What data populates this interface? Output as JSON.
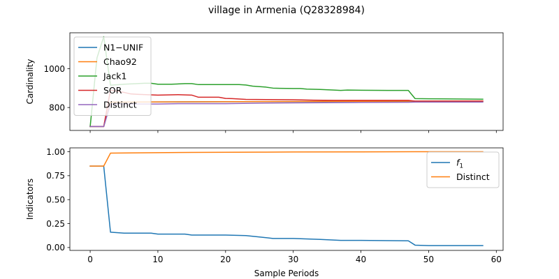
{
  "chart_data": {
    "title": "village in Armenia (Q28328984)",
    "xlabel": "Sample Periods",
    "x_ticks": [
      0,
      10,
      20,
      30,
      40,
      50,
      60
    ],
    "xlim": [
      -3,
      61
    ],
    "panels": [
      {
        "type": "line",
        "ylabel": "Cardinality",
        "ylim": [
          682,
          1185
        ],
        "y_ticks": [
          800,
          1000
        ],
        "legend_position": "upper-left",
        "series": [
          {
            "name": "N1−UNIF",
            "color": "#1f77b4",
            "x": [
              0,
              2,
              3,
              58
            ],
            "y": [
              702,
              702,
              828,
              833
            ]
          },
          {
            "name": "Chao92",
            "color": "#ff7f0e",
            "x": [
              0,
              2,
              3,
              58
            ],
            "y": [
              702,
              702,
              828,
              834
            ]
          },
          {
            "name": "Jack1",
            "color": "#2ca02c",
            "x": [
              0,
              1,
              2,
              3,
              5,
              8,
              9,
              10,
              12,
              14,
              15,
              16,
              18,
              20,
              22,
              23,
              24,
              26,
              27,
              28,
              30,
              31,
              32,
              34,
              36,
              37,
              38,
              40,
              44,
              47,
              48,
              50,
              58
            ],
            "y": [
              702,
              1055,
              1165,
              915,
              920,
              925,
              925,
              920,
              920,
              923,
              923,
              918,
              918,
              918,
              918,
              916,
              910,
              905,
              900,
              899,
              898,
              898,
              895,
              893,
              890,
              888,
              890,
              889,
              888,
              888,
              846,
              845,
              843
            ]
          },
          {
            "name": "SOR",
            "color": "#d62728",
            "x": [
              0,
              2,
              3,
              5,
              6,
              7,
              10,
              13,
              15,
              16,
              19,
              20,
              21,
              23,
              26,
              30,
              33,
              36,
              40,
              44,
              47,
              48,
              58
            ],
            "y": [
              702,
              702,
              890,
              878,
              870,
              868,
              864,
              866,
              864,
              853,
              853,
              847,
              846,
              842,
              841,
              840,
              838,
              837,
              837,
              837,
              837,
              833,
              833
            ]
          },
          {
            "name": "Distinct",
            "color": "#9467bd",
            "x": [
              0,
              2,
              3,
              10,
              13,
              20,
              26,
              30,
              40,
              47,
              48,
              58
            ],
            "y": [
              702,
              702,
              818,
              818,
              820,
              820,
              823,
              824,
              826,
              827,
              828,
              828
            ]
          }
        ]
      },
      {
        "type": "line",
        "ylabel": "Indicators",
        "ylim": [
          -0.03,
          1.04
        ],
        "y_ticks": [
          0.0,
          0.25,
          0.5,
          0.75,
          1.0
        ],
        "y_tick_labels": [
          "0.00",
          "0.25",
          "0.50",
          "0.75",
          "1.00"
        ],
        "legend_position": "upper-right",
        "series": [
          {
            "name": "f1",
            "color": "#1f77b4",
            "x": [
              0,
              2,
              3,
              5,
              9,
              10,
              14,
              15,
              20,
              23,
              25,
              27,
              30,
              34,
              37,
              40,
              47,
              48,
              50,
              58
            ],
            "y": [
              0.85,
              0.85,
              0.16,
              0.15,
              0.15,
              0.14,
              0.14,
              0.13,
              0.13,
              0.125,
              0.11,
              0.095,
              0.095,
              0.085,
              0.075,
              0.075,
              0.07,
              0.025,
              0.02,
              0.02
            ]
          },
          {
            "name": "Distinct",
            "color": "#ff7f0e",
            "x": [
              0,
              2,
              3,
              10,
              15,
              25,
              30,
              40,
              48,
              58
            ],
            "y": [
              0.85,
              0.85,
              0.985,
              0.99,
              0.993,
              0.995,
              0.997,
              0.998,
              1.0,
              1.0
            ]
          }
        ]
      }
    ]
  }
}
